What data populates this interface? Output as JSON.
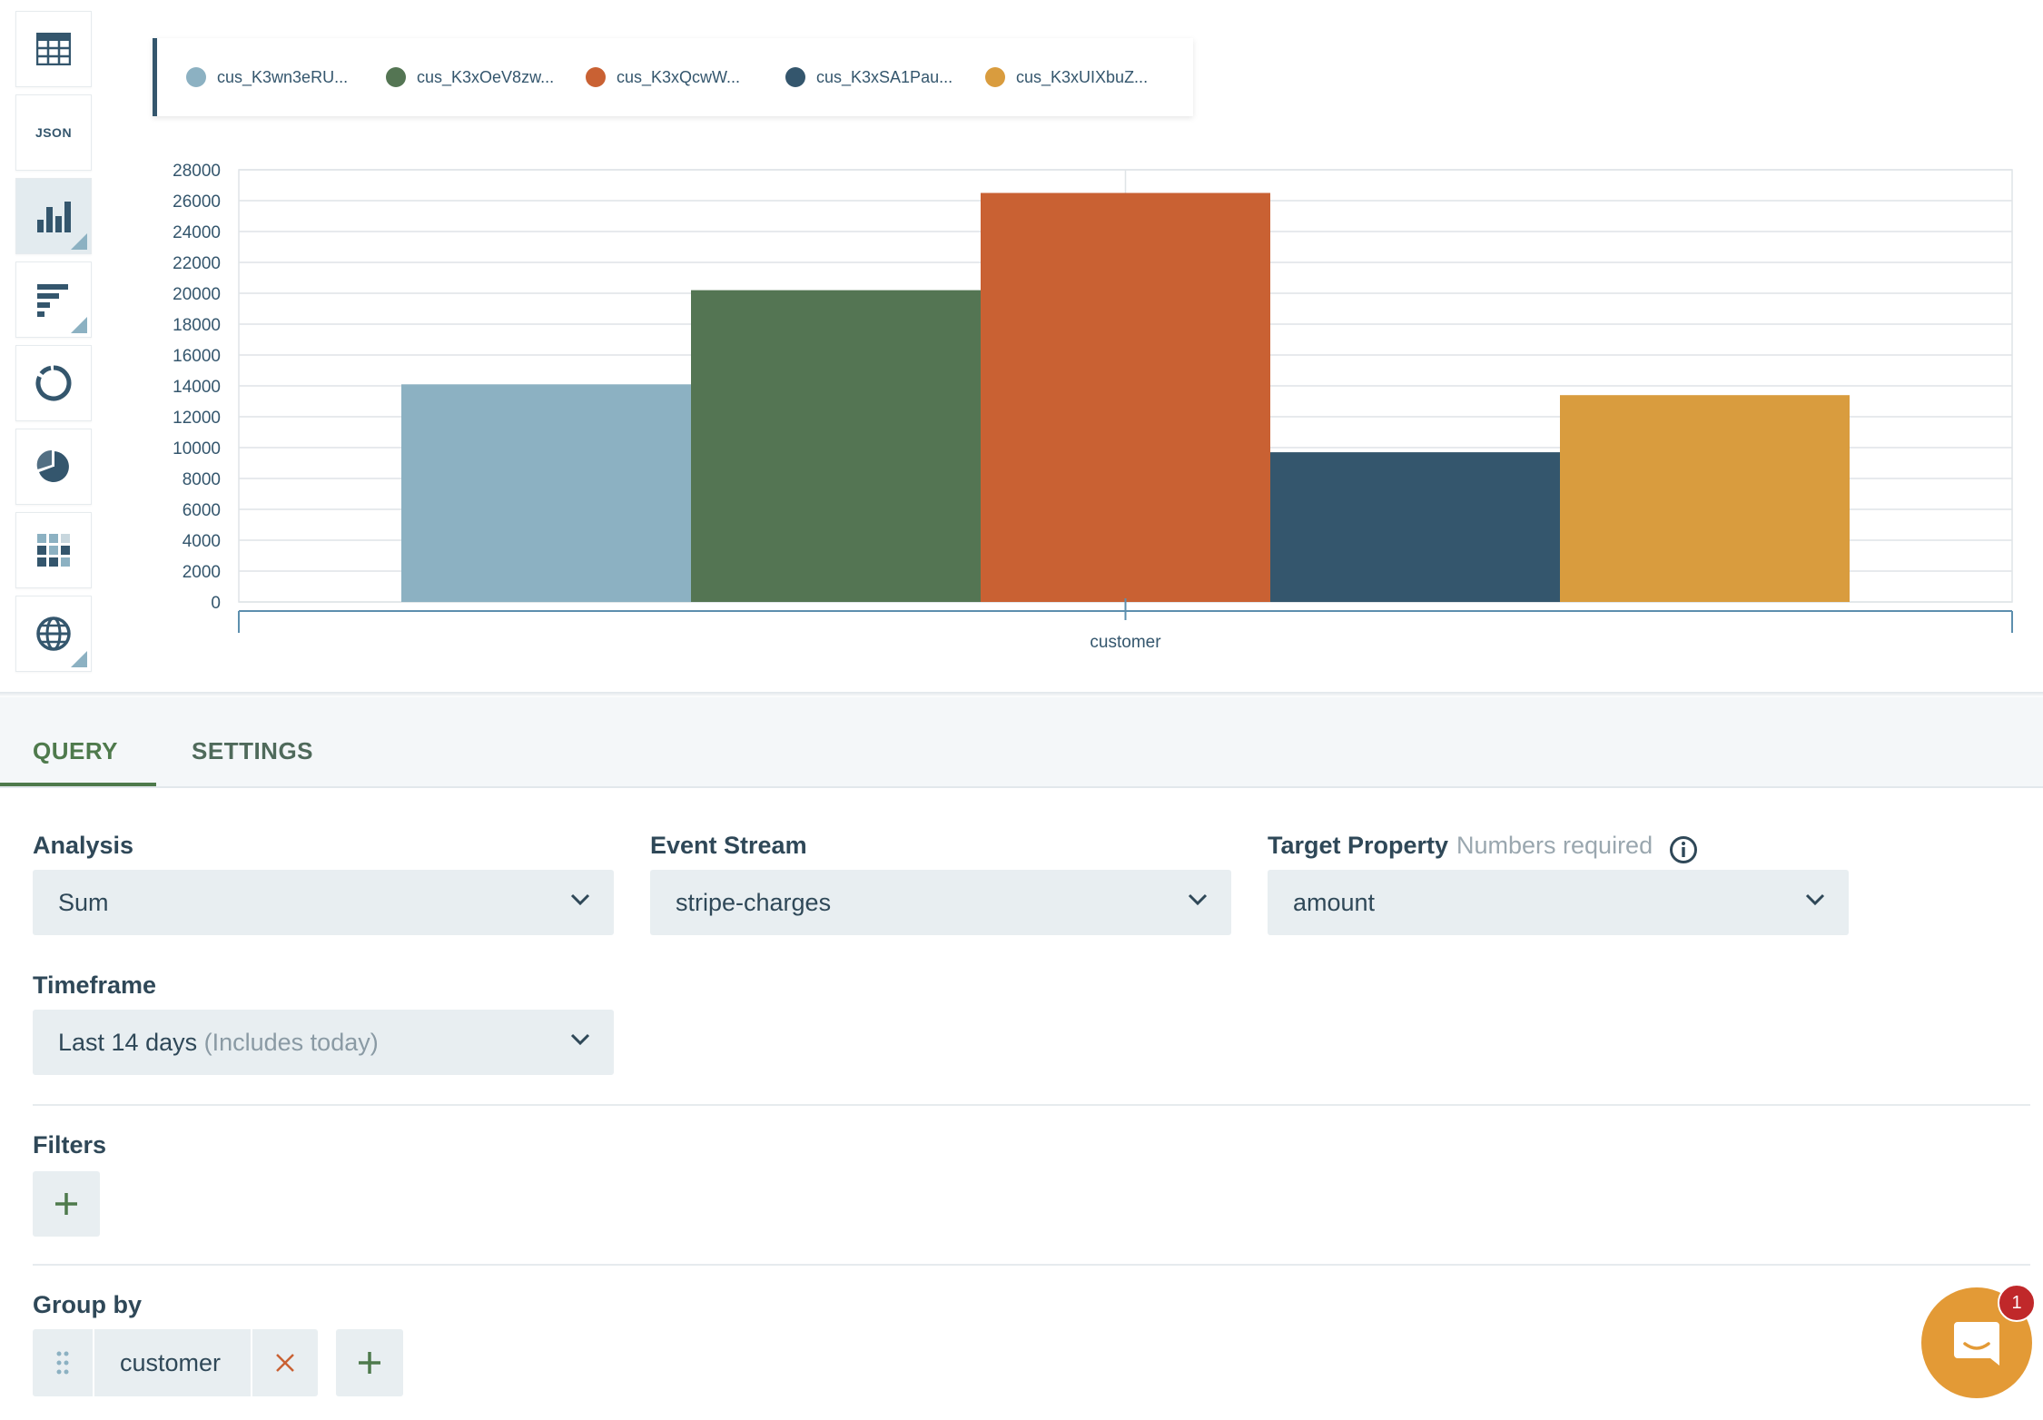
{
  "toolbar": {
    "items": [
      {
        "icon": "table-icon"
      },
      {
        "icon": "json-icon",
        "label": "JSON"
      },
      {
        "icon": "bar-chart-icon",
        "active": true
      },
      {
        "icon": "horizontal-bar-chart-icon"
      },
      {
        "icon": "donut-chart-icon"
      },
      {
        "icon": "pie-chart-icon"
      },
      {
        "icon": "heatmap-icon"
      },
      {
        "icon": "globe-icon"
      }
    ]
  },
  "legend": {
    "items": [
      {
        "label": "cus_K3wn3eRU...",
        "color": "#8cb1c2"
      },
      {
        "label": "cus_K3xOeV8zw...",
        "color": "#547553"
      },
      {
        "label": "cus_K3xQcwW...",
        "color": "#c96133"
      },
      {
        "label": "cus_K3xSA1Pau...",
        "color": "#34566d"
      },
      {
        "label": "cus_K3xUIXbuZ...",
        "color": "#d99c3e"
      }
    ]
  },
  "chart_data": {
    "type": "bar",
    "categories": [
      "customer"
    ],
    "series": [
      {
        "name": "cus_K3wn3eRU...",
        "values": [
          14100
        ],
        "color": "#8cb1c2"
      },
      {
        "name": "cus_K3xOeV8zw...",
        "values": [
          20200
        ],
        "color": "#547553"
      },
      {
        "name": "cus_K3xQcwW...",
        "values": [
          26500
        ],
        "color": "#c96133"
      },
      {
        "name": "cus_K3xSA1Pau...",
        "values": [
          9700
        ],
        "color": "#34566d"
      },
      {
        "name": "cus_K3xUIXbuZ...",
        "values": [
          13400
        ],
        "color": "#d99c3e"
      }
    ],
    "xlabel": "customer",
    "ylim": [
      0,
      28000
    ],
    "yticks": [
      0,
      2000,
      4000,
      6000,
      8000,
      10000,
      12000,
      14000,
      16000,
      18000,
      20000,
      22000,
      24000,
      26000,
      28000
    ],
    "grid": true,
    "legend_position": "top-left"
  },
  "tabs": {
    "query": "QUERY",
    "settings": "SETTINGS"
  },
  "query": {
    "analysis": {
      "label": "Analysis",
      "value": "Sum"
    },
    "event_stream": {
      "label": "Event Stream",
      "value": "stripe-charges"
    },
    "target_property": {
      "label": "Target Property",
      "hint": "Numbers required",
      "value": "amount"
    },
    "timeframe": {
      "label": "Timeframe",
      "value": "Last 14 days",
      "note": "(Includes today)"
    },
    "filters": {
      "label": "Filters"
    },
    "group_by": {
      "label": "Group by",
      "value": "customer"
    }
  },
  "chat": {
    "badge_count": "1"
  },
  "colors": {
    "accent_green": "#4e7a4c",
    "chat_orange": "#e39a36",
    "badge_red": "#c0282a"
  }
}
